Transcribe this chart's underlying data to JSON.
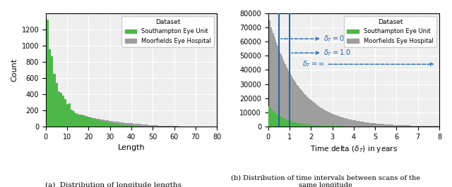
{
  "left_chart": {
    "xlabel": "Length",
    "ylabel": "Count",
    "caption": "(a)  Distribution of longitude lengths",
    "xlim": [
      0,
      80
    ],
    "ylim": [
      0,
      1400
    ],
    "yticks": [
      0,
      200,
      400,
      600,
      800,
      1000,
      1200
    ],
    "xticks": [
      0,
      10,
      20,
      30,
      40,
      50,
      60,
      70,
      80
    ],
    "green_color": "#4db848",
    "gray_color": "#9e9e9e",
    "bar_width": 1.0
  },
  "right_chart": {
    "caption": "(b) Distribution of time intervals between scans of the\nsame longitude",
    "xlim": [
      0,
      8
    ],
    "ylim": [
      0,
      80000
    ],
    "yticks": [
      0,
      10000,
      20000,
      30000,
      40000,
      50000,
      60000,
      70000,
      80000
    ],
    "xticks": [
      0,
      1,
      2,
      3,
      4,
      5,
      6,
      7,
      8
    ],
    "green_color": "#4db848",
    "gray_color": "#9e9e9e",
    "vline1": 0.5,
    "vline2": 1.0,
    "vline_color": "#2166ac",
    "arrow_color": "#2166ac",
    "bar_width": 0.04
  },
  "legend": {
    "dataset_label": "Dataset",
    "green_label": "Southampton Eye Unit",
    "gray_label": "Moorfields Eye Hospital"
  },
  "background_color": "#efefef"
}
